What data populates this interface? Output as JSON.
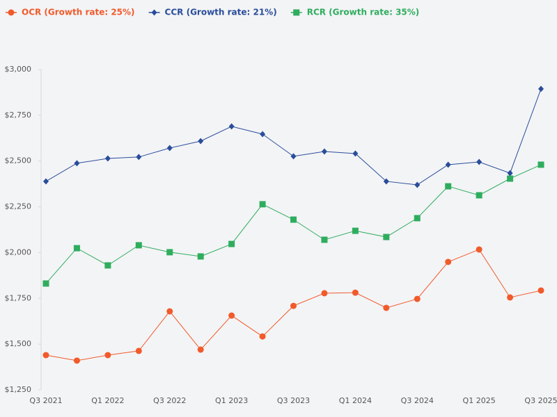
{
  "chart_data": {
    "type": "line",
    "categories": [
      "Q3 2021",
      null,
      "Q1 2022",
      null,
      "Q3 2022",
      null,
      "Q1 2023",
      null,
      "Q3 2023",
      null,
      "Q1 2024",
      null,
      "Q3 2024",
      null,
      "Q1 2025",
      null,
      "Q3 2025"
    ],
    "series": [
      {
        "name": "OCR (Growth rate: 25%)",
        "color": "#f15a2b",
        "marker": "circle",
        "values": [
          1440,
          1410,
          1440,
          1463,
          1679,
          1470,
          1656,
          1542,
          1709,
          1778,
          1781,
          1698,
          1747,
          1949,
          2017,
          1755,
          1793
        ]
      },
      {
        "name": "CCR (Growth rate: 21%)",
        "color": "#2a4d9a",
        "marker": "diamond",
        "values": [
          2389,
          2488,
          2514,
          2522,
          2571,
          2609,
          2689,
          2647,
          2526,
          2552,
          2541,
          2389,
          2370,
          2480,
          2495,
          2434,
          2894
        ]
      },
      {
        "name": "RCR (Growth rate: 35%)",
        "color": "#2fad5e",
        "marker": "square",
        "values": [
          1831,
          2024,
          1930,
          2040,
          2002,
          1979,
          2047,
          2264,
          2180,
          2070,
          2119,
          2085,
          2188,
          2362,
          2313,
          2404,
          2480
        ]
      }
    ],
    "ylim": [
      1250,
      3000
    ],
    "yticks": [
      {
        "value": 1250,
        "label": "$1,250"
      },
      {
        "value": 1500,
        "label": "$1,500"
      },
      {
        "value": 1750,
        "label": "$1,750"
      },
      {
        "value": 2000,
        "label": "$2,000"
      },
      {
        "value": 2250,
        "label": "$2,250"
      },
      {
        "value": 2500,
        "label": "$2,500"
      },
      {
        "value": 2750,
        "label": "$2,750"
      },
      {
        "value": 3000,
        "label": "$3,000"
      }
    ],
    "grid": false,
    "legend": "top-left"
  }
}
